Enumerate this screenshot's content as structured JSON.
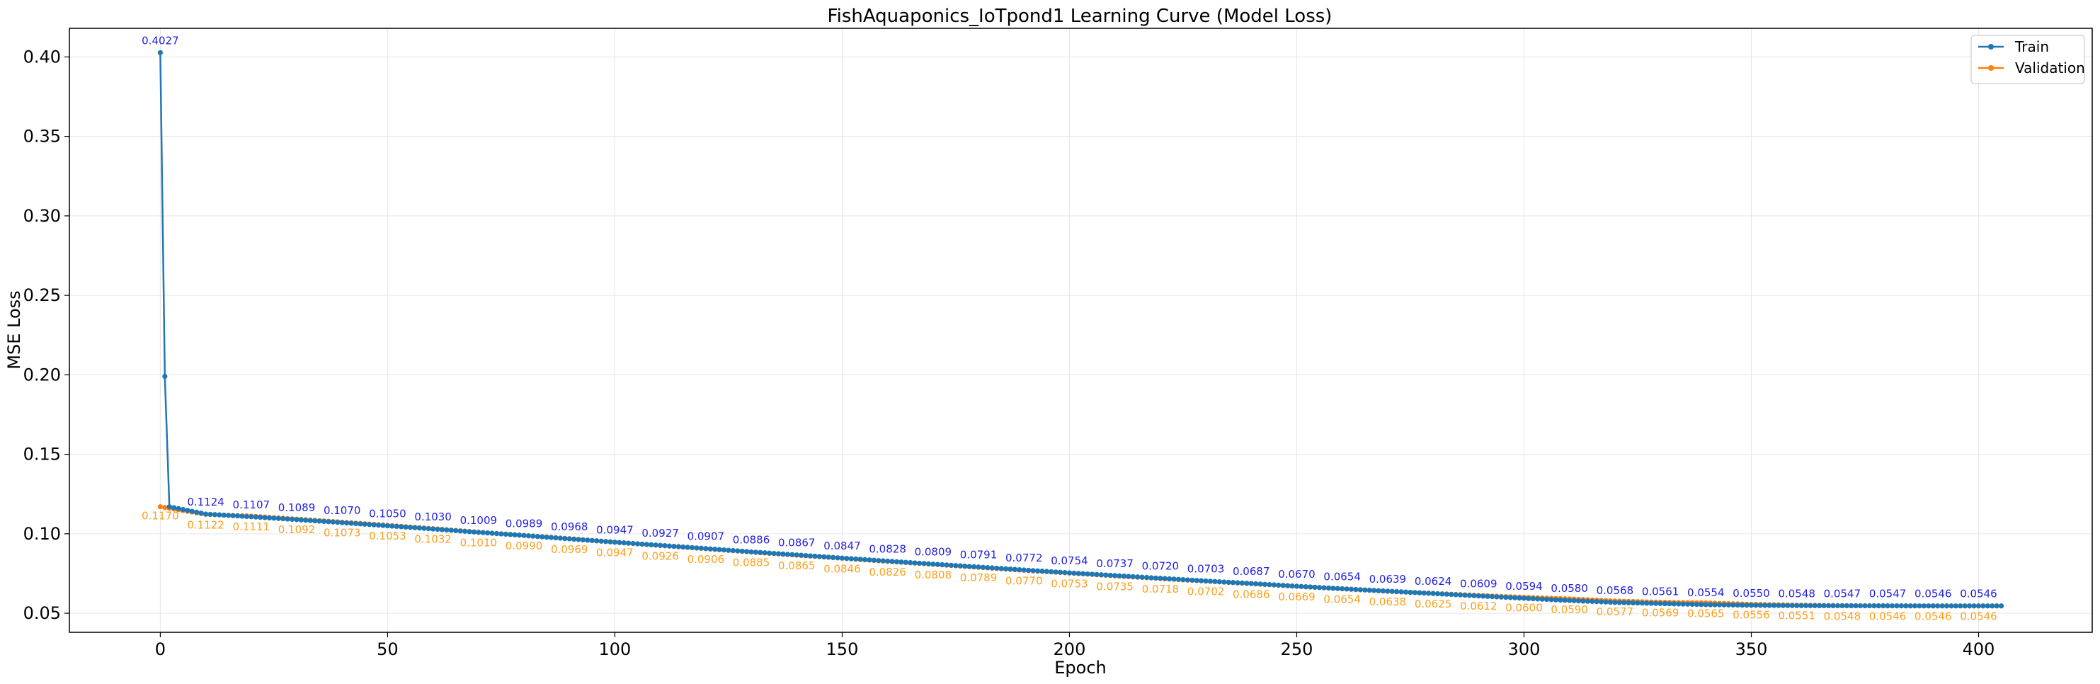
{
  "colors": {
    "train": "#1f77b4",
    "validation": "#ff7f0e",
    "train_annotation": "#1f1fe0",
    "validation_annotation": "#ff9f1a",
    "grid": "#e6e6e6"
  },
  "chart_data": {
    "type": "line",
    "title": "FishAquaponics_IoTpond1 Learning Curve (Model Loss)",
    "xlabel": "Epoch",
    "ylabel": "MSE Loss",
    "xlim": [
      -20,
      425
    ],
    "ylim": [
      0.038,
      0.418
    ],
    "x_ticks": [
      0,
      50,
      100,
      150,
      200,
      250,
      300,
      350,
      400
    ],
    "y_ticks": [
      0.05,
      0.1,
      0.15,
      0.2,
      0.25,
      0.3,
      0.35,
      0.4
    ],
    "x_tick_labels": [
      "0",
      "50",
      "100",
      "150",
      "200",
      "250",
      "300",
      "350",
      "400"
    ],
    "y_tick_labels": [
      "0.05",
      "0.10",
      "0.15",
      "0.20",
      "0.25",
      "0.30",
      "0.35",
      "0.40"
    ],
    "grid": true,
    "legend_position": "top-right",
    "epochs": 406,
    "series": [
      {
        "name": "Train",
        "key": "train",
        "head": [
          [
            0,
            0.4027
          ],
          [
            1,
            0.199
          ],
          [
            2,
            0.117
          ]
        ],
        "annotations": [
          [
            0,
            0.4027
          ],
          [
            10,
            0.1124
          ],
          [
            20,
            0.1107
          ],
          [
            30,
            0.1089
          ],
          [
            40,
            0.107
          ],
          [
            50,
            0.105
          ],
          [
            60,
            0.103
          ],
          [
            70,
            0.1009
          ],
          [
            80,
            0.0989
          ],
          [
            90,
            0.0968
          ],
          [
            100,
            0.0947
          ],
          [
            110,
            0.0927
          ],
          [
            120,
            0.0907
          ],
          [
            130,
            0.0886
          ],
          [
            140,
            0.0867
          ],
          [
            150,
            0.0847
          ],
          [
            160,
            0.0828
          ],
          [
            170,
            0.0809
          ],
          [
            180,
            0.0791
          ],
          [
            190,
            0.0772
          ],
          [
            200,
            0.0754
          ],
          [
            210,
            0.0737
          ],
          [
            220,
            0.072
          ],
          [
            230,
            0.0703
          ],
          [
            240,
            0.0687
          ],
          [
            250,
            0.067
          ],
          [
            260,
            0.0654
          ],
          [
            270,
            0.0639
          ],
          [
            280,
            0.0624
          ],
          [
            290,
            0.0609
          ],
          [
            300,
            0.0594
          ],
          [
            310,
            0.058
          ],
          [
            320,
            0.0568
          ],
          [
            330,
            0.0561
          ],
          [
            340,
            0.0554
          ],
          [
            350,
            0.055
          ],
          [
            360,
            0.0548
          ],
          [
            370,
            0.0547
          ],
          [
            380,
            0.0547
          ],
          [
            390,
            0.0546
          ],
          [
            400,
            0.0546
          ]
        ],
        "annotation_labels": [
          "0.4027",
          "0.1124",
          "0.1107",
          "0.1089",
          "0.1070",
          "0.1050",
          "0.1030",
          "0.1009",
          "0.0989",
          "0.0968",
          "0.0947",
          "0.0927",
          "0.0907",
          "0.0886",
          "0.0867",
          "0.0847",
          "0.0828",
          "0.0809",
          "0.0791",
          "0.0772",
          "0.0754",
          "0.0737",
          "0.0720",
          "0.0703",
          "0.0687",
          "0.0670",
          "0.0654",
          "0.0639",
          "0.0624",
          "0.0609",
          "0.0594",
          "0.0580",
          "0.0568",
          "0.0561",
          "0.0554",
          "0.0550",
          "0.0548",
          "0.0547",
          "0.0547",
          "0.0546",
          "0.0546"
        ],
        "tail": [
          [
            405,
            0.0546
          ]
        ]
      },
      {
        "name": "Validation",
        "key": "validation",
        "head": [],
        "annotations": [
          [
            0,
            0.117
          ],
          [
            10,
            0.1122
          ],
          [
            20,
            0.1111
          ],
          [
            30,
            0.1092
          ],
          [
            40,
            0.1073
          ],
          [
            50,
            0.1053
          ],
          [
            60,
            0.1032
          ],
          [
            70,
            0.101
          ],
          [
            80,
            0.099
          ],
          [
            90,
            0.0969
          ],
          [
            100,
            0.0947
          ],
          [
            110,
            0.0926
          ],
          [
            120,
            0.0906
          ],
          [
            130,
            0.0885
          ],
          [
            140,
            0.0865
          ],
          [
            150,
            0.0846
          ],
          [
            160,
            0.0826
          ],
          [
            170,
            0.0808
          ],
          [
            180,
            0.0789
          ],
          [
            190,
            0.077
          ],
          [
            200,
            0.0753
          ],
          [
            210,
            0.0735
          ],
          [
            220,
            0.0718
          ],
          [
            230,
            0.0702
          ],
          [
            240,
            0.0686
          ],
          [
            250,
            0.0669
          ],
          [
            260,
            0.0654
          ],
          [
            270,
            0.0638
          ],
          [
            280,
            0.0625
          ],
          [
            290,
            0.0612
          ],
          [
            300,
            0.06
          ],
          [
            310,
            0.059
          ],
          [
            320,
            0.0577
          ],
          [
            330,
            0.0569
          ],
          [
            340,
            0.0565
          ],
          [
            350,
            0.0556
          ],
          [
            360,
            0.0551
          ],
          [
            370,
            0.0548
          ],
          [
            380,
            0.0546
          ],
          [
            390,
            0.0546
          ],
          [
            400,
            0.0546
          ]
        ],
        "annotation_labels": [
          "0.1170",
          "0.1122",
          "0.1111",
          "0.1092",
          "0.1073",
          "0.1053",
          "0.1032",
          "0.1010",
          "0.0990",
          "0.0969",
          "0.0947",
          "0.0926",
          "0.0906",
          "0.0885",
          "0.0865",
          "0.0846",
          "0.0826",
          "0.0808",
          "0.0789",
          "0.0770",
          "0.0753",
          "0.0735",
          "0.0718",
          "0.0702",
          "0.0686",
          "0.0669",
          "0.0654",
          "0.0638",
          "0.0625",
          "0.0612",
          "0.0600",
          "0.0590",
          "0.0577",
          "0.0569",
          "0.0565",
          "0.0556",
          "0.0551",
          "0.0548",
          "0.0546",
          "0.0546",
          "0.0546"
        ],
        "tail": [
          [
            405,
            0.0546
          ]
        ]
      }
    ]
  }
}
